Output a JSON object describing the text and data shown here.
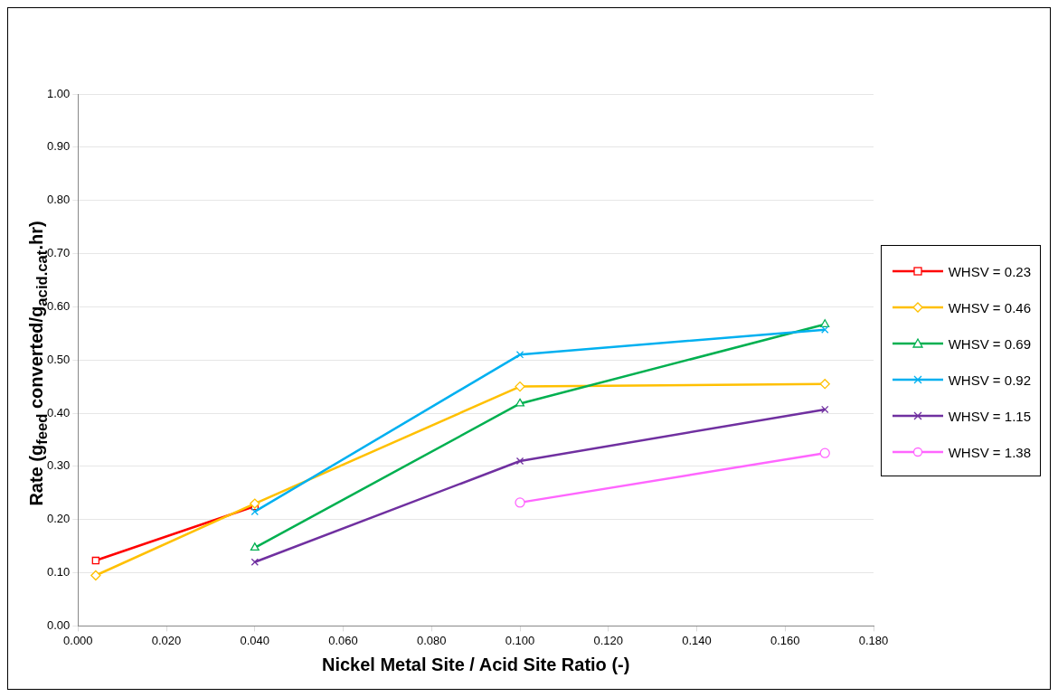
{
  "chart_data": {
    "type": "line",
    "xlabel": "Nickel Metal Site / Acid Site Ratio (-)",
    "ylabel": "Rate (g$_{feed}$ converted/g$_{acid.cat}$.hr)",
    "xlim": [
      0,
      0.18
    ],
    "xticks": [
      {
        "value": 0,
        "label": "0.000"
      },
      {
        "value": 0.02,
        "label": "0.020"
      },
      {
        "value": 0.04,
        "label": "0.040"
      },
      {
        "value": 0.06,
        "label": "0.060"
      },
      {
        "value": 0.08,
        "label": "0.080"
      },
      {
        "value": 0.1,
        "label": "0.100"
      },
      {
        "value": 0.12,
        "label": "0.120"
      },
      {
        "value": 0.14,
        "label": "0.140"
      },
      {
        "value": 0.16,
        "label": "0.160"
      },
      {
        "value": 0.18,
        "label": "0.180"
      }
    ],
    "ylim": [
      0,
      1
    ],
    "yticks": [
      {
        "value": 0,
        "label": "0.00"
      },
      {
        "value": 0.1,
        "label": "0.10"
      },
      {
        "value": 0.2,
        "label": "0.20"
      },
      {
        "value": 0.3,
        "label": "0.30"
      },
      {
        "value": 0.4,
        "label": "0.40"
      },
      {
        "value": 0.5,
        "label": "0.50"
      },
      {
        "value": 0.6,
        "label": "0.60"
      },
      {
        "value": 0.7,
        "label": "0.70"
      },
      {
        "value": 0.8,
        "label": "0.80"
      },
      {
        "value": 0.9,
        "label": "0.90"
      },
      {
        "value": 1,
        "label": "1.00"
      }
    ],
    "grid": "y",
    "legend": "right",
    "line_style": "solid",
    "series": [
      {
        "name": "WHSV = 0.23",
        "color": "#ff0000",
        "marker": "square",
        "x": [
          0.004,
          0.04
        ],
        "values": [
          0.123,
          0.225
        ]
      },
      {
        "name": "WHSV = 0.46",
        "color": "#ffc000",
        "marker": "diamond",
        "x": [
          0.004,
          0.04,
          0.1,
          0.169
        ],
        "values": [
          0.095,
          0.23,
          0.45,
          0.455
        ]
      },
      {
        "name": "WHSV = 0.69",
        "color": "#00b050",
        "marker": "triangle",
        "x": [
          0.04,
          0.1,
          0.169
        ],
        "values": [
          0.147,
          0.418,
          0.567
        ]
      },
      {
        "name": "WHSV = 0.92",
        "color": "#00b0f0",
        "marker": "cross",
        "x": [
          0.04,
          0.1,
          0.169
        ],
        "values": [
          0.215,
          0.51,
          0.557
        ]
      },
      {
        "name": "WHSV = 1.15",
        "color": "#7030a0",
        "marker": "cross",
        "x": [
          0.04,
          0.1,
          0.169
        ],
        "values": [
          0.12,
          0.31,
          0.407
        ]
      },
      {
        "name": "WHSV = 1.38",
        "color": "#ff66ff",
        "marker": "circle",
        "x": [
          0.1,
          0.169
        ],
        "values": [
          0.232,
          0.325
        ]
      }
    ]
  }
}
